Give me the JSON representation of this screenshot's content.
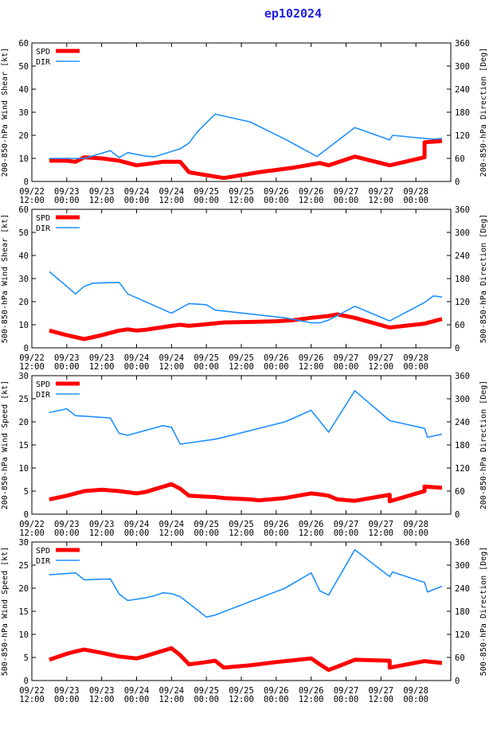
{
  "title": "ep102024",
  "colors": {
    "spd": "#ff0000",
    "dir": "#1e90ff",
    "axis": "#000000",
    "title": "#1f1fe0"
  },
  "x_tick_labels": [
    [
      "09/22",
      "12:00"
    ],
    [
      "09/23",
      "00:00"
    ],
    [
      "09/23",
      "12:00"
    ],
    [
      "09/24",
      "00:00"
    ],
    [
      "09/24",
      "12:00"
    ],
    [
      "09/25",
      "00:00"
    ],
    [
      "09/25",
      "12:00"
    ],
    [
      "09/26",
      "00:00"
    ],
    [
      "09/26",
      "12:00"
    ],
    [
      "09/27",
      "00:00"
    ],
    [
      "09/27",
      "12:00"
    ],
    [
      "09/28",
      "00:00"
    ]
  ],
  "chart_data": [
    {
      "type": "line",
      "ylabel": "200-850-hPa Wind Shear [kt]",
      "y2label": "200-850-hPa Direction [Deg]",
      "ylim": [
        0,
        60
      ],
      "yticks": [
        0,
        10,
        20,
        30,
        40,
        50,
        60
      ],
      "y2lim": [
        0,
        360
      ],
      "y2ticks": [
        0,
        60,
        120,
        180,
        240,
        300,
        360
      ],
      "legend": [
        "SPD",
        "DIR"
      ],
      "series": [
        {
          "name": "SPD",
          "axis": "left",
          "x": [
            6,
            12,
            15,
            18,
            24,
            30,
            36,
            39,
            45,
            51,
            54,
            66,
            78,
            90,
            99,
            102,
            111,
            123,
            135,
            135,
            141
          ],
          "values": [
            9,
            9,
            8.5,
            10.5,
            10,
            9,
            7,
            7.5,
            8.5,
            8.5,
            4,
            1.5,
            4,
            6,
            8,
            7,
            10.8,
            7,
            10.5,
            17,
            17.5
          ]
        },
        {
          "name": "DIR",
          "axis": "right",
          "x": [
            6,
            12,
            18,
            27,
            30,
            33,
            39,
            42,
            51,
            54,
            57,
            63,
            75,
            87,
            98,
            111,
            123,
            124,
            132,
            138,
            141
          ],
          "values": [
            60,
            60,
            60,
            80,
            62,
            75,
            66,
            64,
            85,
            100,
            130,
            175,
            155,
            110,
            65,
            140,
            108,
            120,
            114,
            110,
            112
          ]
        }
      ]
    },
    {
      "type": "line",
      "ylabel": "500-850-hPa Wind Shear [kt]",
      "y2label": "500-850-hPa Direction [Deg]",
      "ylim": [
        0,
        60
      ],
      "yticks": [
        0,
        10,
        20,
        30,
        40,
        50,
        60
      ],
      "y2lim": [
        0,
        360
      ],
      "y2ticks": [
        0,
        60,
        120,
        180,
        240,
        300,
        360
      ],
      "legend": [
        "SPD",
        "DIR"
      ],
      "series": [
        {
          "name": "SPD",
          "axis": "left",
          "x": [
            6,
            12,
            18,
            24,
            30,
            33,
            36,
            39,
            48,
            51,
            54,
            60,
            66,
            75,
            84,
            90,
            96,
            102,
            105,
            111,
            123,
            135,
            141
          ],
          "values": [
            7.5,
            5.5,
            3.8,
            5.5,
            7.5,
            8,
            7.5,
            7.8,
            9.5,
            10,
            9.5,
            10.2,
            11,
            11.2,
            11.5,
            12,
            13,
            13.8,
            14.5,
            13,
            8.8,
            10.5,
            12.5
          ]
        },
        {
          "name": "DIR",
          "axis": "right",
          "x": [
            6,
            12,
            15,
            18,
            21,
            30,
            33,
            45,
            48,
            54,
            60,
            63,
            87,
            96,
            99,
            102,
            111,
            123,
            135,
            138,
            141
          ],
          "values": [
            198,
            160,
            140,
            160,
            168,
            170,
            140,
            100,
            90,
            115,
            112,
            98,
            78,
            65,
            65,
            72,
            108,
            70,
            118,
            135,
            132
          ]
        }
      ]
    },
    {
      "type": "line",
      "ylabel": "200-850-hPa Wind Speed [kt]",
      "y2label": "200-850-hPa Direction [Deg]",
      "ylim": [
        0,
        30
      ],
      "yticks": [
        0,
        5,
        10,
        15,
        20,
        25,
        30
      ],
      "y2lim": [
        0,
        360
      ],
      "y2ticks": [
        0,
        60,
        120,
        180,
        240,
        300,
        360
      ],
      "legend": [
        "SPD",
        "DIR"
      ],
      "series": [
        {
          "name": "SPD",
          "axis": "left",
          "x": [
            6,
            12,
            18,
            24,
            30,
            36,
            39,
            48,
            51,
            54,
            60,
            63,
            66,
            75,
            78,
            87,
            96,
            99,
            102,
            105,
            111,
            123,
            123,
            135,
            135,
            141
          ],
          "values": [
            3.2,
            4,
            5,
            5.3,
            5,
            4.5,
            4.8,
            6.5,
            5.5,
            4,
            3.8,
            3.7,
            3.5,
            3.2,
            3,
            3.5,
            4.5,
            4.3,
            4,
            3.2,
            2.9,
            4.2,
            2.8,
            5,
            6,
            5.7
          ]
        },
        {
          "name": "DIR",
          "axis": "right",
          "x": [
            6,
            12,
            15,
            18,
            27,
            30,
            33,
            45,
            48,
            51,
            63,
            66,
            87,
            96,
            102,
            111,
            123,
            135,
            136,
            141
          ],
          "values": [
            264,
            274,
            256,
            255,
            250,
            210,
            205,
            230,
            226,
            182,
            195,
            200,
            240,
            270,
            213,
            321,
            243,
            223,
            200,
            208
          ]
        }
      ]
    },
    {
      "type": "line",
      "ylabel": "500-850-hPa Wind Speed [kt]",
      "y2label": "500-850-hPa Direction [Deg]",
      "ylim": [
        0,
        30
      ],
      "yticks": [
        0,
        5,
        10,
        15,
        20,
        25,
        30
      ],
      "y2lim": [
        0,
        360
      ],
      "y2ticks": [
        0,
        60,
        120,
        180,
        240,
        300,
        360
      ],
      "legend": [
        "SPD",
        "DIR"
      ],
      "series": [
        {
          "name": "SPD",
          "axis": "left",
          "x": [
            6,
            12,
            15,
            18,
            24,
            30,
            36,
            39,
            48,
            51,
            54,
            60,
            63,
            66,
            75,
            84,
            96,
            99,
            102,
            105,
            111,
            123,
            123,
            135,
            141
          ],
          "values": [
            4.5,
            5.8,
            6.3,
            6.7,
            6,
            5.2,
            4.8,
            5.3,
            7,
            5.5,
            3.5,
            4,
            4.3,
            2.8,
            3.3,
            4,
            4.8,
            3.5,
            2.3,
            3,
            4.5,
            4.3,
            2.8,
            4.2,
            3.8
          ]
        },
        {
          "name": "DIR",
          "axis": "right",
          "x": [
            6,
            12,
            15,
            18,
            27,
            30,
            33,
            39,
            42,
            45,
            48,
            51,
            60,
            63,
            87,
            96,
            99,
            102,
            111,
            123,
            124,
            135,
            136,
            141
          ],
          "values": [
            275,
            278,
            280,
            262,
            264,
            225,
            208,
            215,
            220,
            228,
            226,
            218,
            165,
            170,
            240,
            280,
            233,
            222,
            340,
            270,
            282,
            255,
            230,
            245
          ]
        }
      ]
    }
  ]
}
